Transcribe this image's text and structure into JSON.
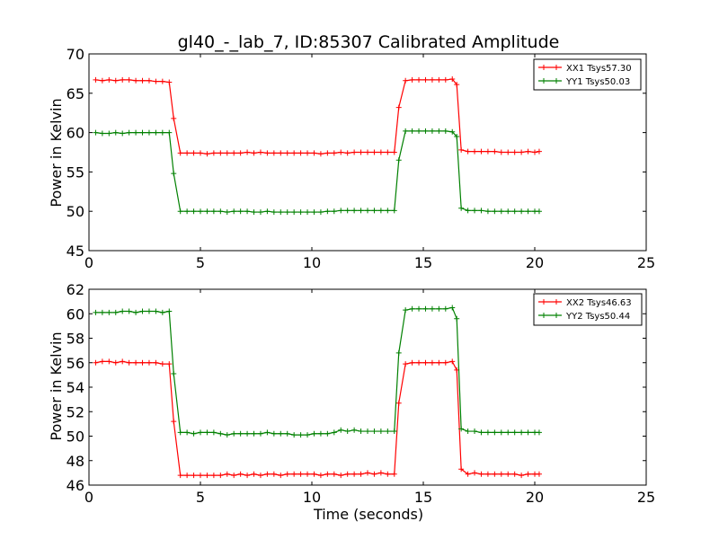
{
  "chart_data": [
    {
      "type": "line",
      "title": "gl40_-_lab_7, ID:85307 Calibrated Amplitude",
      "xlabel": "",
      "ylabel": "Power in Kelvin",
      "xlim": [
        0,
        25
      ],
      "ylim": [
        45,
        70
      ],
      "xticks": [
        0,
        5,
        10,
        15,
        20,
        25
      ],
      "yticks": [
        45,
        50,
        55,
        60,
        65,
        70
      ],
      "grid": false,
      "legend_placement": "top-right",
      "series": [
        {
          "name": "XX1 Tsys57.30",
          "color": "#ff0000",
          "x": [
            0.3,
            0.6,
            0.9,
            1.2,
            1.5,
            1.8,
            2.1,
            2.4,
            2.7,
            3.0,
            3.3,
            3.6,
            3.8,
            4.1,
            4.4,
            4.7,
            5.0,
            5.3,
            5.6,
            5.9,
            6.2,
            6.5,
            6.8,
            7.1,
            7.4,
            7.7,
            8.0,
            8.3,
            8.6,
            8.9,
            9.2,
            9.5,
            9.8,
            10.1,
            10.4,
            10.7,
            11.0,
            11.3,
            11.6,
            11.9,
            12.2,
            12.5,
            12.8,
            13.1,
            13.4,
            13.7,
            13.9,
            14.2,
            14.5,
            14.8,
            15.1,
            15.4,
            15.7,
            16.0,
            16.3,
            16.5,
            16.7,
            17.0,
            17.3,
            17.6,
            17.9,
            18.2,
            18.5,
            18.8,
            19.1,
            19.4,
            19.7,
            20.0,
            20.2
          ],
          "values": [
            66.7,
            66.6,
            66.7,
            66.6,
            66.7,
            66.7,
            66.6,
            66.6,
            66.6,
            66.5,
            66.5,
            66.4,
            61.8,
            57.4,
            57.4,
            57.4,
            57.4,
            57.3,
            57.4,
            57.4,
            57.4,
            57.4,
            57.4,
            57.5,
            57.4,
            57.5,
            57.4,
            57.4,
            57.4,
            57.4,
            57.4,
            57.4,
            57.4,
            57.4,
            57.3,
            57.4,
            57.4,
            57.5,
            57.4,
            57.5,
            57.5,
            57.5,
            57.5,
            57.5,
            57.5,
            57.5,
            63.2,
            66.6,
            66.7,
            66.7,
            66.7,
            66.7,
            66.7,
            66.7,
            66.8,
            66.1,
            57.8,
            57.6,
            57.6,
            57.6,
            57.6,
            57.6,
            57.5,
            57.5,
            57.5,
            57.5,
            57.6,
            57.5,
            57.6
          ]
        },
        {
          "name": "YY1 Tsys50.03",
          "color": "#008000",
          "x": [
            0.3,
            0.6,
            0.9,
            1.2,
            1.5,
            1.8,
            2.1,
            2.4,
            2.7,
            3.0,
            3.3,
            3.6,
            3.8,
            4.1,
            4.4,
            4.7,
            5.0,
            5.3,
            5.6,
            5.9,
            6.2,
            6.5,
            6.8,
            7.1,
            7.4,
            7.7,
            8.0,
            8.3,
            8.6,
            8.9,
            9.2,
            9.5,
            9.8,
            10.1,
            10.4,
            10.7,
            11.0,
            11.3,
            11.6,
            11.9,
            12.2,
            12.5,
            12.8,
            13.1,
            13.4,
            13.7,
            13.9,
            14.2,
            14.5,
            14.8,
            15.1,
            15.4,
            15.7,
            16.0,
            16.3,
            16.5,
            16.7,
            17.0,
            17.3,
            17.6,
            17.9,
            18.2,
            18.5,
            18.8,
            19.1,
            19.4,
            19.7,
            20.0,
            20.2
          ],
          "values": [
            60.0,
            59.9,
            59.9,
            60.0,
            59.9,
            60.0,
            60.0,
            60.0,
            60.0,
            60.0,
            60.0,
            60.0,
            54.8,
            50.0,
            50.0,
            50.0,
            50.0,
            50.0,
            50.0,
            50.0,
            49.9,
            50.0,
            50.0,
            50.0,
            49.9,
            49.9,
            50.0,
            49.9,
            49.9,
            49.9,
            49.9,
            49.9,
            49.9,
            49.9,
            49.9,
            50.0,
            50.0,
            50.1,
            50.1,
            50.1,
            50.1,
            50.1,
            50.1,
            50.1,
            50.1,
            50.1,
            56.5,
            60.2,
            60.2,
            60.2,
            60.2,
            60.2,
            60.2,
            60.2,
            60.1,
            59.5,
            50.4,
            50.1,
            50.1,
            50.1,
            50.0,
            50.0,
            50.0,
            50.0,
            50.0,
            50.0,
            50.0,
            50.0,
            50.0
          ]
        }
      ]
    },
    {
      "type": "line",
      "title": "",
      "xlabel": "Time (seconds)",
      "ylabel": "Power in Kelvin",
      "xlim": [
        0,
        25
      ],
      "ylim": [
        46,
        62
      ],
      "xticks": [
        0,
        5,
        10,
        15,
        20,
        25
      ],
      "yticks": [
        46,
        48,
        50,
        52,
        54,
        56,
        58,
        60,
        62
      ],
      "grid": false,
      "legend_placement": "top-right",
      "series": [
        {
          "name": "XX2 Tsys46.63",
          "color": "#ff0000",
          "x": [
            0.3,
            0.6,
            0.9,
            1.2,
            1.5,
            1.8,
            2.1,
            2.4,
            2.7,
            3.0,
            3.3,
            3.6,
            3.8,
            4.1,
            4.4,
            4.7,
            5.0,
            5.3,
            5.6,
            5.9,
            6.2,
            6.5,
            6.8,
            7.1,
            7.4,
            7.7,
            8.0,
            8.3,
            8.6,
            8.9,
            9.2,
            9.5,
            9.8,
            10.1,
            10.4,
            10.7,
            11.0,
            11.3,
            11.6,
            11.9,
            12.2,
            12.5,
            12.8,
            13.1,
            13.4,
            13.7,
            13.9,
            14.2,
            14.5,
            14.8,
            15.1,
            15.4,
            15.7,
            16.0,
            16.3,
            16.5,
            16.7,
            17.0,
            17.3,
            17.6,
            17.9,
            18.2,
            18.5,
            18.8,
            19.1,
            19.4,
            19.7,
            20.0,
            20.2
          ],
          "values": [
            56.0,
            56.1,
            56.1,
            56.0,
            56.1,
            56.0,
            56.0,
            56.0,
            56.0,
            56.0,
            55.9,
            55.9,
            51.2,
            46.8,
            46.8,
            46.8,
            46.8,
            46.8,
            46.8,
            46.8,
            46.9,
            46.8,
            46.9,
            46.8,
            46.9,
            46.8,
            46.9,
            46.9,
            46.8,
            46.9,
            46.9,
            46.9,
            46.9,
            46.9,
            46.8,
            46.9,
            46.9,
            46.8,
            46.9,
            46.9,
            46.9,
            47.0,
            46.9,
            47.0,
            46.9,
            46.9,
            52.7,
            55.9,
            56.0,
            56.0,
            56.0,
            56.0,
            56.0,
            56.0,
            56.1,
            55.4,
            47.3,
            46.9,
            47.0,
            46.9,
            46.9,
            46.9,
            46.9,
            46.9,
            46.9,
            46.8,
            46.9,
            46.9,
            46.9
          ]
        },
        {
          "name": "YY2 Tsys50.44",
          "color": "#008000",
          "x": [
            0.3,
            0.6,
            0.9,
            1.2,
            1.5,
            1.8,
            2.1,
            2.4,
            2.7,
            3.0,
            3.3,
            3.6,
            3.8,
            4.1,
            4.4,
            4.7,
            5.0,
            5.3,
            5.6,
            5.9,
            6.2,
            6.5,
            6.8,
            7.1,
            7.4,
            7.7,
            8.0,
            8.3,
            8.6,
            8.9,
            9.2,
            9.5,
            9.8,
            10.1,
            10.4,
            10.7,
            11.0,
            11.3,
            11.6,
            11.9,
            12.2,
            12.5,
            12.8,
            13.1,
            13.4,
            13.7,
            13.9,
            14.2,
            14.5,
            14.8,
            15.1,
            15.4,
            15.7,
            16.0,
            16.3,
            16.5,
            16.7,
            17.0,
            17.3,
            17.6,
            17.9,
            18.2,
            18.5,
            18.8,
            19.1,
            19.4,
            19.7,
            20.0,
            20.2
          ],
          "values": [
            60.1,
            60.1,
            60.1,
            60.1,
            60.2,
            60.2,
            60.1,
            60.2,
            60.2,
            60.2,
            60.1,
            60.2,
            55.1,
            50.3,
            50.3,
            50.2,
            50.3,
            50.3,
            50.3,
            50.2,
            50.1,
            50.2,
            50.2,
            50.2,
            50.2,
            50.2,
            50.3,
            50.2,
            50.2,
            50.2,
            50.1,
            50.1,
            50.1,
            50.2,
            50.2,
            50.2,
            50.3,
            50.5,
            50.4,
            50.5,
            50.4,
            50.4,
            50.4,
            50.4,
            50.4,
            50.4,
            56.8,
            60.3,
            60.4,
            60.4,
            60.4,
            60.4,
            60.4,
            60.4,
            60.5,
            59.6,
            50.6,
            50.4,
            50.4,
            50.3,
            50.3,
            50.3,
            50.3,
            50.3,
            50.3,
            50.3,
            50.3,
            50.3,
            50.3
          ]
        }
      ]
    }
  ]
}
